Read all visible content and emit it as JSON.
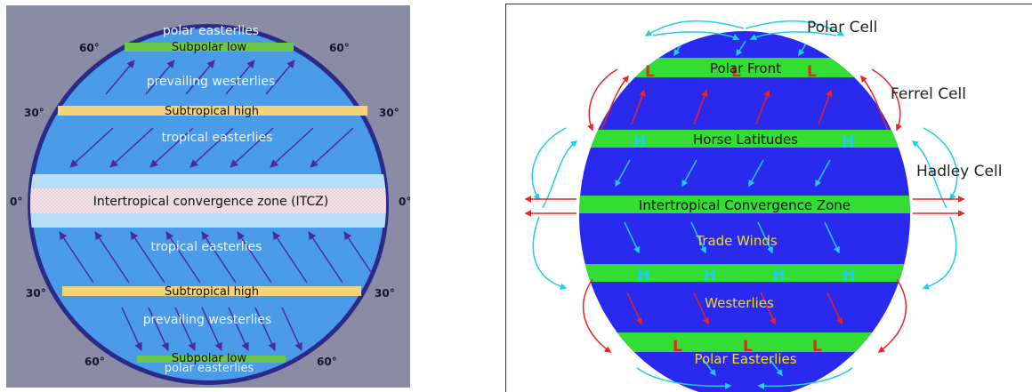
{
  "left": {
    "bands": {
      "polar_easterlies_top": "polar easterlies",
      "subpolar_low_top": "Subpolar low",
      "prevailing_westerlies_top": "prevailing westerlies",
      "subtropical_high_top": "Subtropical high",
      "tropical_easterlies_top": "tropical easterlies",
      "itcz": "Intertropical convergence zone (ITCZ)",
      "tropical_easterlies_bottom": "tropical easterlies",
      "subtropical_high_bottom": "Subtropical high",
      "prevailing_westerlies_bottom": "prevailing westerlies",
      "subpolar_low_bottom": "Subpolar low",
      "polar_easterlies_bottom": "polar easterlies"
    },
    "latitudes": {
      "n60": "60°",
      "n30": "30°",
      "eq": "0°",
      "s30": "30°",
      "s60": "60°"
    },
    "colors": {
      "background": "#8a8ca6",
      "globe": "#4a9be8",
      "rim": "#2a2a8a",
      "subpolar": "#6cc84c",
      "subtropical": "#f4d37a",
      "itcz_band": "#f2e4ea",
      "arrow": "#4a2aa0"
    }
  },
  "right": {
    "cells": {
      "polar": "Polar Cell",
      "ferrel": "Ferrel Cell",
      "hadley": "Hadley Cell"
    },
    "bands": {
      "polar_front": "Polar Front",
      "horse_latitudes": "Horse Latitudes",
      "itcz": "Intertropical Convergence Zone",
      "trade_winds": "Trade Winds",
      "westerlies": "Westerlies",
      "polar_easterlies": "Polar Easterlies"
    },
    "markers": {
      "low": "L",
      "high": "H"
    },
    "colors": {
      "globe": "#2a2aee",
      "band": "#33dd33",
      "warm": "#ee2222",
      "cool": "#22ccee",
      "label": "#eedd22"
    }
  }
}
